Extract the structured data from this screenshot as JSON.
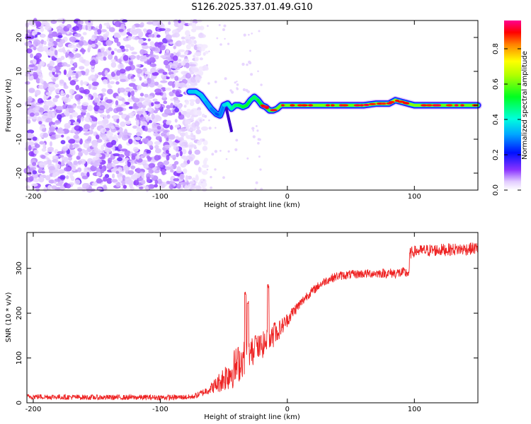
{
  "chart_data": [
    {
      "type": "heatmap",
      "title": "S126.2025.337.01.49.G10",
      "xlabel": "Height of straight line (km)",
      "ylabel": "Frequency (Hz)",
      "xlim": [
        -205,
        150
      ],
      "ylim": [
        -25,
        25
      ],
      "x_ticks": [
        -200,
        -100,
        0,
        100
      ],
      "y_ticks": [
        -20,
        -10,
        0,
        10,
        20
      ],
      "colorbar": {
        "label": "Normalized spectral amplitude",
        "range": [
          0,
          0.96
        ],
        "ticks": [
          0.0,
          0.2,
          0.4,
          0.6,
          0.8
        ],
        "stops": [
          "#ffffff",
          "#6a00ff",
          "#0000ff",
          "#00ffff",
          "#00ff00",
          "#ffff00",
          "#ff0000",
          "#ff00a0"
        ]
      },
      "noise_region_x": [
        -205,
        -65
      ],
      "ridge": {
        "x": [
          -77,
          -72,
          -68,
          -64,
          -60,
          -56,
          -53,
          -50,
          -47,
          -44,
          -41,
          -38,
          -35,
          -32,
          -29,
          -26,
          -23,
          -20,
          -17,
          -14,
          -11,
          -8,
          -5,
          0,
          10,
          20,
          30,
          40,
          50,
          60,
          70,
          80,
          85,
          90,
          95,
          100,
          110,
          120,
          130,
          140,
          150
        ],
        "freq": [
          4,
          4,
          3,
          1,
          -1,
          -2.5,
          -3,
          0,
          0.5,
          -1,
          0,
          0,
          -0.5,
          0,
          1.5,
          2.5,
          1.5,
          0,
          -0.5,
          -1.5,
          -1.5,
          -1,
          0,
          0,
          0,
          0,
          0,
          0,
          0,
          0,
          0.5,
          0.5,
          1.5,
          1,
          0.5,
          0,
          0,
          0,
          0,
          0,
          0
        ],
        "amplitude": [
          0.5,
          0.55,
          0.55,
          0.5,
          0.45,
          0.4,
          0.35,
          0.5,
          0.6,
          0.65,
          0.7,
          0.75,
          0.75,
          0.8,
          0.75,
          0.7,
          0.75,
          0.8,
          0.8,
          0.85,
          0.85,
          0.9,
          0.9,
          0.9,
          0.92,
          0.92,
          0.9,
          0.9,
          0.88,
          0.9,
          0.92,
          0.95,
          0.95,
          0.95,
          0.93,
          0.92,
          0.92,
          0.9,
          0.9,
          0.9,
          0.9
        ]
      }
    },
    {
      "type": "line",
      "title": "",
      "xlabel": "Height of straight line (km)",
      "ylabel": "SNR (10 * v/v)",
      "xlim": [
        -205,
        150
      ],
      "ylim": [
        0,
        380
      ],
      "x_ticks": [
        -200,
        -100,
        0,
        100
      ],
      "y_ticks": [
        0,
        100,
        200,
        300
      ],
      "series": [
        {
          "name": "SNR",
          "color": "#ee2222",
          "x": [
            -205,
            -180,
            -150,
            -120,
            -90,
            -75,
            -70,
            -65,
            -60,
            -55,
            -50,
            -45,
            -40,
            -35,
            -30,
            -25,
            -20,
            -15,
            -10,
            -5,
            0,
            5,
            10,
            15,
            20,
            25,
            30,
            35,
            40,
            50,
            60,
            70,
            80,
            90,
            95,
            96,
            100,
            110,
            120,
            130,
            140,
            150
          ],
          "mean": [
            14,
            13,
            12,
            12,
            12,
            13,
            18,
            25,
            33,
            42,
            55,
            68,
            82,
            98,
            110,
            118,
            128,
            138,
            150,
            168,
            185,
            205,
            220,
            238,
            250,
            262,
            272,
            278,
            283,
            286,
            288,
            289,
            289,
            290,
            290,
            332,
            338,
            340,
            341,
            342,
            343,
            345
          ],
          "noise": [
            6,
            6,
            6,
            6,
            6,
            6,
            7,
            9,
            12,
            20,
            30,
            40,
            45,
            40,
            35,
            30,
            30,
            28,
            24,
            20,
            16,
            14,
            12,
            11,
            10,
            10,
            10,
            10,
            10,
            10,
            10,
            10,
            11,
            12,
            12,
            13,
            13,
            14,
            14,
            14,
            14,
            14
          ],
          "spikes": [
            [
              -33,
              250
            ],
            [
              -31,
              230
            ],
            [
              -25,
              150
            ],
            [
              -15,
              265
            ],
            [
              -10,
              180
            ]
          ]
        }
      ]
    }
  ]
}
